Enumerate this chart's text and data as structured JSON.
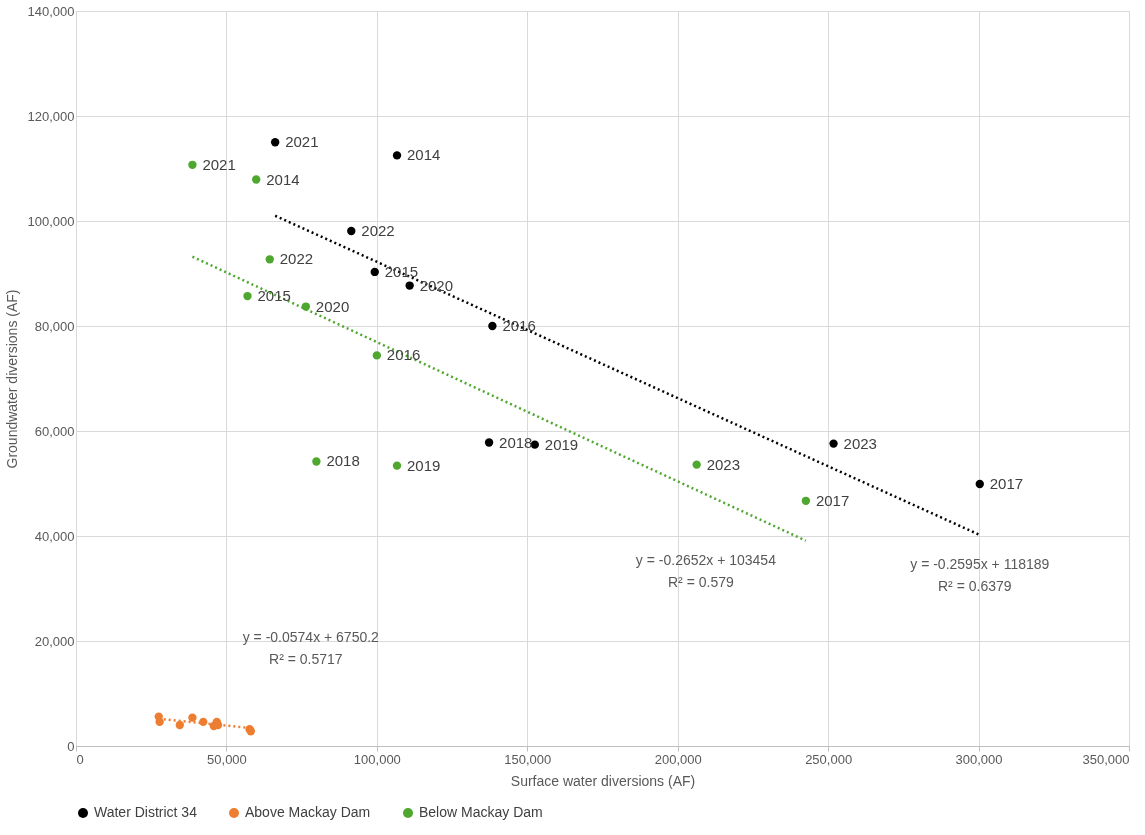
{
  "chart_data": {
    "type": "scatter",
    "xlabel": "Surface water diversions (AF)",
    "ylabel": "Groundwater diversions (AF)",
    "xlim": [
      0,
      350000
    ],
    "ylim": [
      0,
      140000
    ],
    "xticks": [
      0,
      {
        "value": 50000,
        "label": "50,000"
      },
      {
        "value": 100000,
        "label": "100,000"
      },
      {
        "value": 150000,
        "label": "150,000"
      },
      {
        "value": 200000,
        "label": "200,000"
      },
      {
        "value": 250000,
        "label": "250,000"
      },
      {
        "value": 300000,
        "label": "300,000"
      },
      {
        "value": 350000,
        "label": "350,000"
      }
    ],
    "yticks": [
      0,
      {
        "value": 20000,
        "label": "20,000"
      },
      {
        "value": 40000,
        "label": "40,000"
      },
      {
        "value": 60000,
        "label": "60,000"
      },
      {
        "value": 80000,
        "label": "80,000"
      },
      {
        "value": 100000,
        "label": "100,000"
      },
      {
        "value": 120000,
        "label": "120,000"
      },
      {
        "value": 140000,
        "label": "140,000"
      }
    ],
    "grid": true,
    "legend": "bottom",
    "series": [
      {
        "name": "Water District 34",
        "color": "#000000",
        "marker": "circle",
        "x": [
          66200,
          106700,
          91500,
          99300,
          110900,
          138400,
          137300,
          152500,
          251800,
          300400
        ],
        "values": [
          115000,
          112500,
          98100,
          90300,
          87700,
          80000,
          57800,
          57400,
          57600,
          49900
        ]
      },
      {
        "name": "Above Mackay Dam",
        "color": "#ed7d31",
        "marker": "circle",
        "x": [
          27500,
          27800,
          34500,
          38700,
          42300,
          45800,
          46800,
          47200,
          57700,
          58100
        ],
        "values": [
          5600,
          4600,
          4000,
          5400,
          4600,
          3800,
          4600,
          4000,
          3200,
          2800
        ]
      },
      {
        "name": "Below Mackay Dam",
        "color": "#4ea72e",
        "marker": "circle",
        "x": [
          38700,
          59900,
          64400,
          57000,
          76400,
          100000,
          79900,
          106700,
          206300,
          242600
        ],
        "values": [
          110700,
          107900,
          92700,
          85700,
          83700,
          74400,
          54200,
          53400,
          53600,
          46700
        ]
      },
      {
        "type": "line",
        "color": "#000000",
        "line_style": "dotted",
        "x": [
          66200,
          300400
        ],
        "values": [
          101000,
          40200
        ]
      },
      {
        "type": "line",
        "color": "#ed7d31",
        "line_style": "dotted",
        "x": [
          27500,
          58100
        ],
        "values": [
          5200,
          3400
        ]
      },
      {
        "type": "line",
        "color": "#4ea72e",
        "line_style": "dotted",
        "x": [
          38700,
          242600
        ],
        "values": [
          93200,
          39100
        ]
      }
    ],
    "annotations": [
      "y = -0.2595x + 118189",
      "R² = 0.6379",
      "y = -0.0574x + 6750.2",
      "R² = 0.5717",
      "y = -0.2652x + 103454",
      "R² = 0.579",
      {
        "text": "2021",
        "x": 66200,
        "y": 115000
      },
      {
        "text": "2014",
        "x": 106700,
        "y": 112500
      },
      {
        "text": "2022",
        "x": 91500,
        "y": 98100
      },
      {
        "text": "2015",
        "x": 99300,
        "y": 90300
      },
      {
        "text": "2020",
        "x": 110900,
        "y": 87700
      },
      {
        "text": "2016",
        "x": 138400,
        "y": 80000
      },
      {
        "text": "2018",
        "x": 137300,
        "y": 57800
      },
      {
        "text": "2019",
        "x": 152500,
        "y": 57400
      },
      {
        "text": "2023",
        "x": 251800,
        "y": 57600
      },
      {
        "text": "2017",
        "x": 300400,
        "y": 49900
      },
      {
        "text": "2021",
        "x": 38700,
        "y": 110700
      },
      {
        "text": "2014",
        "x": 59900,
        "y": 107900
      },
      {
        "text": "2022",
        "x": 64400,
        "y": 92700
      },
      {
        "text": "2015",
        "x": 57000,
        "y": 85700
      },
      {
        "text": "2020",
        "x": 76400,
        "y": 83700
      },
      {
        "text": "2016",
        "x": 100000,
        "y": 74400
      },
      {
        "text": "2018",
        "x": 79900,
        "y": 54200
      },
      {
        "text": "2019",
        "x": 106700,
        "y": 53400
      },
      {
        "text": "2023",
        "x": 206300,
        "y": 53600
      },
      {
        "text": "2017",
        "x": 242600,
        "y": 46700
      }
    ]
  }
}
